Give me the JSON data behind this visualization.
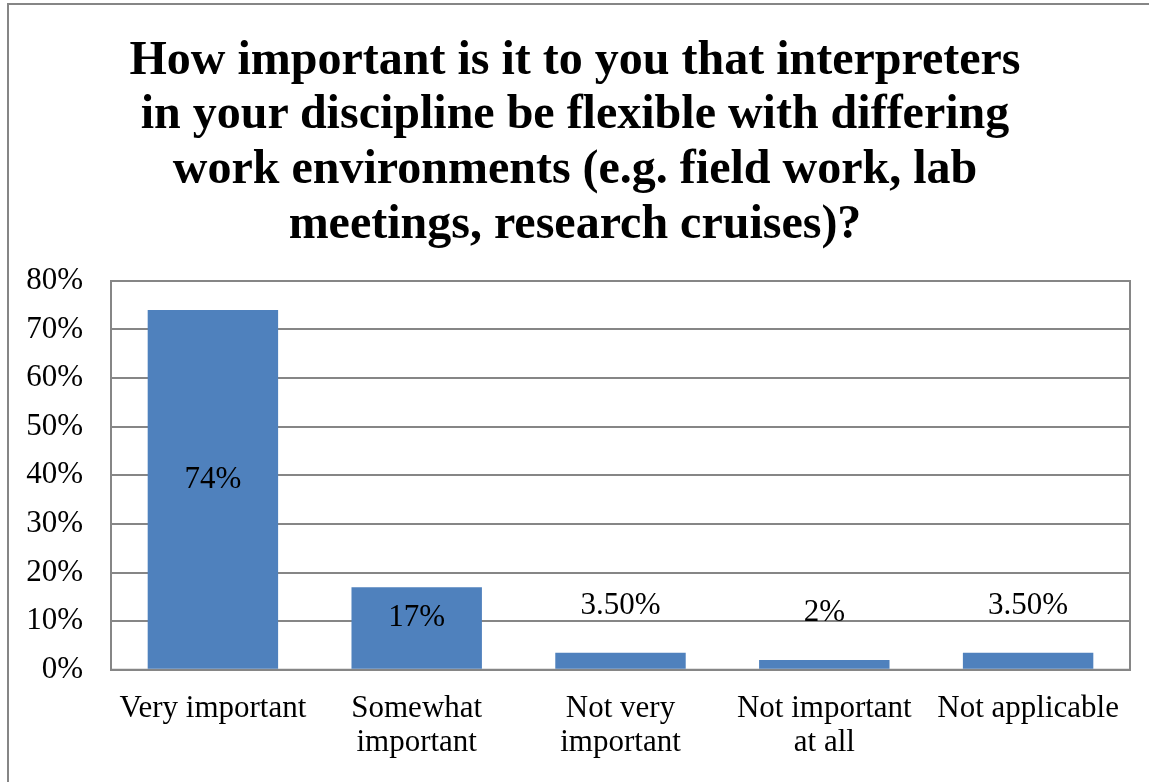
{
  "chart_data": {
    "type": "bar",
    "title": "How important is it to you that interpreters in your discipline be flexible with differing work environments (e.g. field work, lab meetings, research cruises)?",
    "categories": [
      "Very important",
      "Somewhat important",
      "Not very important",
      "Not important at all",
      "Not applicable"
    ],
    "values": [
      74,
      17,
      3.5,
      2,
      3.5
    ],
    "color": "#4f81bd",
    "value_labels": [
      "74%",
      "17%",
      "3.50%",
      "2%",
      "3.50%"
    ],
    "ylim": [
      0,
      80
    ],
    "yticks": [
      {
        "value": 0,
        "label": "0%"
      },
      {
        "value": 10,
        "label": "10%"
      },
      {
        "value": 20,
        "label": "20%"
      },
      {
        "value": 30,
        "label": "30%"
      },
      {
        "value": 40,
        "label": "40%"
      },
      {
        "value": 50,
        "label": "50%"
      },
      {
        "value": 60,
        "label": "60%"
      },
      {
        "value": 70,
        "label": "70%"
      },
      {
        "value": 80,
        "label": "80%"
      }
    ],
    "grid": "y",
    "legend": false
  }
}
